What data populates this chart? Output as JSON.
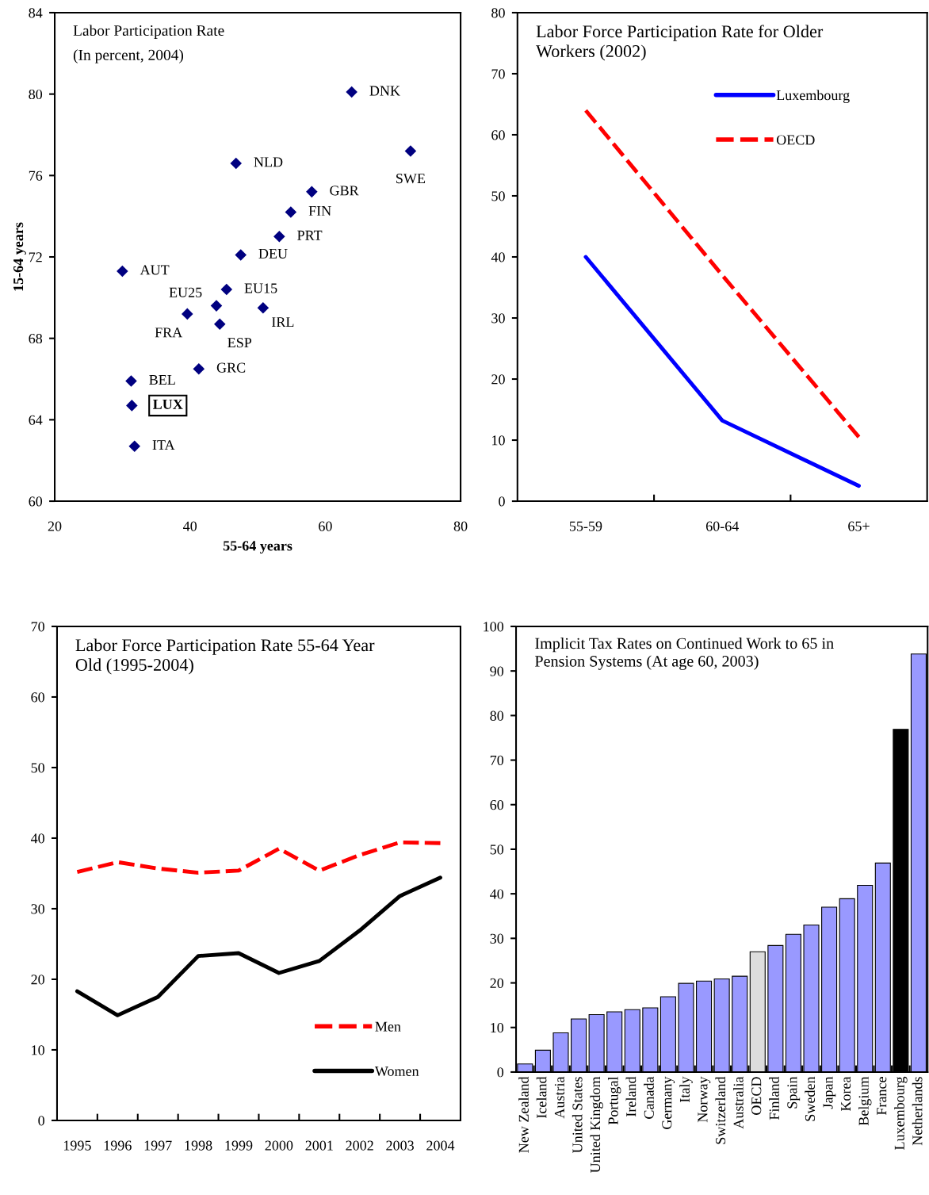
{
  "chart_data": [
    {
      "type": "scatter",
      "title": "Labor Participation Rate",
      "subtitle": "(In percent, 2004)",
      "xlabel": "55-64 years",
      "ylabel": "15-64 years",
      "marker": "diamond",
      "series": [
        {
          "color": "#000080",
          "x": [
            63.9,
            72.6,
            46.8,
            58.0,
            54.9,
            53.2,
            47.5,
            30.0,
            45.4,
            43.9,
            39.6,
            50.8,
            44.4,
            41.3,
            31.3,
            31.8
          ],
          "values": [
            80.1,
            77.2,
            76.6,
            75.2,
            74.2,
            73.0,
            72.1,
            71.3,
            70.4,
            69.6,
            69.2,
            69.5,
            68.7,
            66.5,
            65.9,
            62.7
          ]
        },
        {
          "color": "#000080",
          "x": [
            31.4
          ],
          "values": [
            64.7
          ]
        }
      ],
      "annotations": [
        {
          "text": "DNK",
          "x": 63.9,
          "y": 80.1
        },
        {
          "text": "SWE",
          "x": 72.6,
          "y": 77.2
        },
        {
          "text": "NLD",
          "x": 46.8,
          "y": 76.6
        },
        {
          "text": "GBR",
          "x": 58.0,
          "y": 75.2
        },
        {
          "text": "FIN",
          "x": 54.9,
          "y": 74.2
        },
        {
          "text": "PRT",
          "x": 53.2,
          "y": 73.0
        },
        {
          "text": "DEU",
          "x": 47.5,
          "y": 72.1
        },
        {
          "text": "AUT",
          "x": 30.0,
          "y": 71.3
        },
        {
          "text": "EU15",
          "x": 45.4,
          "y": 70.4
        },
        {
          "text": "EU25",
          "x": 43.9,
          "y": 69.6
        },
        {
          "text": "FRA",
          "x": 39.6,
          "y": 69.2
        },
        {
          "text": "IRL",
          "x": 50.8,
          "y": 69.5
        },
        {
          "text": "ESP",
          "x": 44.4,
          "y": 68.7
        },
        {
          "text": "GRC",
          "x": 41.3,
          "y": 66.5
        },
        {
          "text": "BEL",
          "x": 31.3,
          "y": 65.9
        },
        {
          "text": "LUX",
          "x": 31.4,
          "y": 64.7
        },
        {
          "text": "ITA",
          "x": 31.8,
          "y": 62.7
        }
      ],
      "xlim": [
        20,
        80
      ],
      "xticks": [
        20,
        40,
        60,
        80
      ],
      "ylim": [
        60,
        84
      ],
      "yticks": [
        60,
        64,
        68,
        72,
        76,
        80,
        84
      ],
      "grid": false
    },
    {
      "type": "line",
      "title": "Labor Force Participation Rate for Older\nWorkers (2002)",
      "categories": [
        "55-59",
        "60-64",
        "65+"
      ],
      "legend": "top right",
      "series": [
        {
          "name": "Luxembourg",
          "color": "#0000ff",
          "line_style": "solid",
          "values": [
            40.0,
            13.2,
            2.5
          ]
        },
        {
          "name": "OECD",
          "color": "#ff0000",
          "line_style": "dashed",
          "values": [
            64.0,
            37.0,
            10.5
          ]
        }
      ],
      "ylim": [
        0,
        80
      ],
      "yticks": [
        0,
        10,
        20,
        30,
        40,
        50,
        60,
        70,
        80
      ],
      "grid": false
    },
    {
      "type": "line",
      "title": "Labor Force Participation Rate 55-64 Year\nOld (1995-2004)",
      "categories": [
        "1995",
        "1996",
        "1997",
        "1998",
        "1999",
        "2000",
        "2001",
        "2002",
        "2003",
        "2004"
      ],
      "legend": "bottom right",
      "series": [
        {
          "name": "Men",
          "color": "#ff0000",
          "line_style": "dashed",
          "values": [
            35.2,
            36.6,
            35.7,
            35.1,
            35.4,
            38.5,
            35.4,
            37.6,
            39.4,
            39.3
          ]
        },
        {
          "name": "Women",
          "color": "#000000",
          "line_style": "solid",
          "values": [
            18.3,
            14.9,
            17.5,
            23.3,
            23.7,
            20.9,
            22.6,
            26.9,
            31.8,
            34.4
          ]
        }
      ],
      "ylim": [
        0,
        70
      ],
      "yticks": [
        0,
        10,
        20,
        30,
        40,
        50,
        60,
        70
      ],
      "grid": false
    },
    {
      "type": "bar",
      "title": "Implicit Tax Rates on Continued Work to 65 in\nPension Systems (At age 60, 2003)",
      "categories": [
        "New Zealand",
        "Iceland",
        "Austria",
        "United States",
        "United Kingdom",
        "Portugal",
        "Ireland",
        "Canada",
        "Germany",
        "Italy",
        "Norway",
        "Switzerland",
        "Australia",
        "OECD",
        "Finland",
        "Spain",
        "Sweden",
        "Japan",
        "Korea",
        "Belgium",
        "France",
        "Luxembourg",
        "Netherlands"
      ],
      "values": [
        1.8,
        4.9,
        8.8,
        11.9,
        12.9,
        13.5,
        14.0,
        14.4,
        16.9,
        19.9,
        20.4,
        20.9,
        21.5,
        27.0,
        28.4,
        30.9,
        33.0,
        37.0,
        38.9,
        41.9,
        46.9,
        76.9,
        93.8
      ],
      "colors": [
        "#9999ff",
        "#9999ff",
        "#9999ff",
        "#9999ff",
        "#9999ff",
        "#9999ff",
        "#9999ff",
        "#9999ff",
        "#9999ff",
        "#9999ff",
        "#9999ff",
        "#9999ff",
        "#9999ff",
        "#dddddd",
        "#9999ff",
        "#9999ff",
        "#9999ff",
        "#9999ff",
        "#9999ff",
        "#9999ff",
        "#9999ff",
        "#000000",
        "#9999ff"
      ],
      "ylim": [
        0,
        100
      ],
      "yticks": [
        0,
        10,
        20,
        30,
        40,
        50,
        60,
        70,
        80,
        90,
        100
      ],
      "grid": false
    }
  ]
}
